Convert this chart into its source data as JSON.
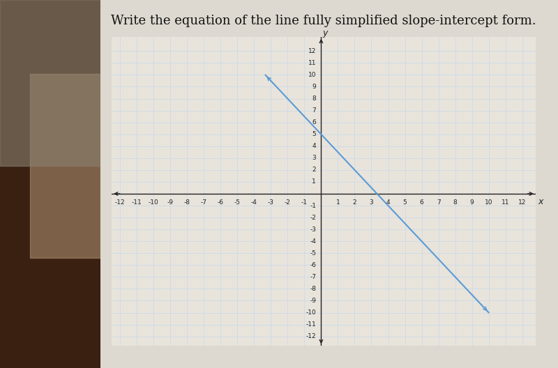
{
  "title": "Write the equation of the line fully simplified slope-intercept form.",
  "slope": -1.5,
  "y_intercept": 5,
  "x_line_start": -3.33,
  "x_line_end": 10.0,
  "xlim": [
    -12.5,
    12.8
  ],
  "ylim": [
    -12.8,
    13.2
  ],
  "xticks": [
    -12,
    -11,
    -10,
    -9,
    -8,
    -7,
    -6,
    -5,
    -4,
    -3,
    -2,
    -1,
    1,
    2,
    3,
    4,
    5,
    6,
    7,
    8,
    9,
    10,
    11,
    12
  ],
  "yticks": [
    -12,
    -11,
    -10,
    -9,
    -8,
    -7,
    -6,
    -5,
    -4,
    -3,
    -2,
    -1,
    1,
    2,
    3,
    4,
    5,
    6,
    7,
    8,
    9,
    10,
    11,
    12
  ],
  "line_color": "#5b9bd5",
  "grid_color": "#c8d8e8",
  "axis_color": "#222222",
  "bg_color": "#ddd8d0",
  "plot_bg_color": "#e8e4dc",
  "title_fontsize": 13,
  "tick_fontsize": 6.5
}
